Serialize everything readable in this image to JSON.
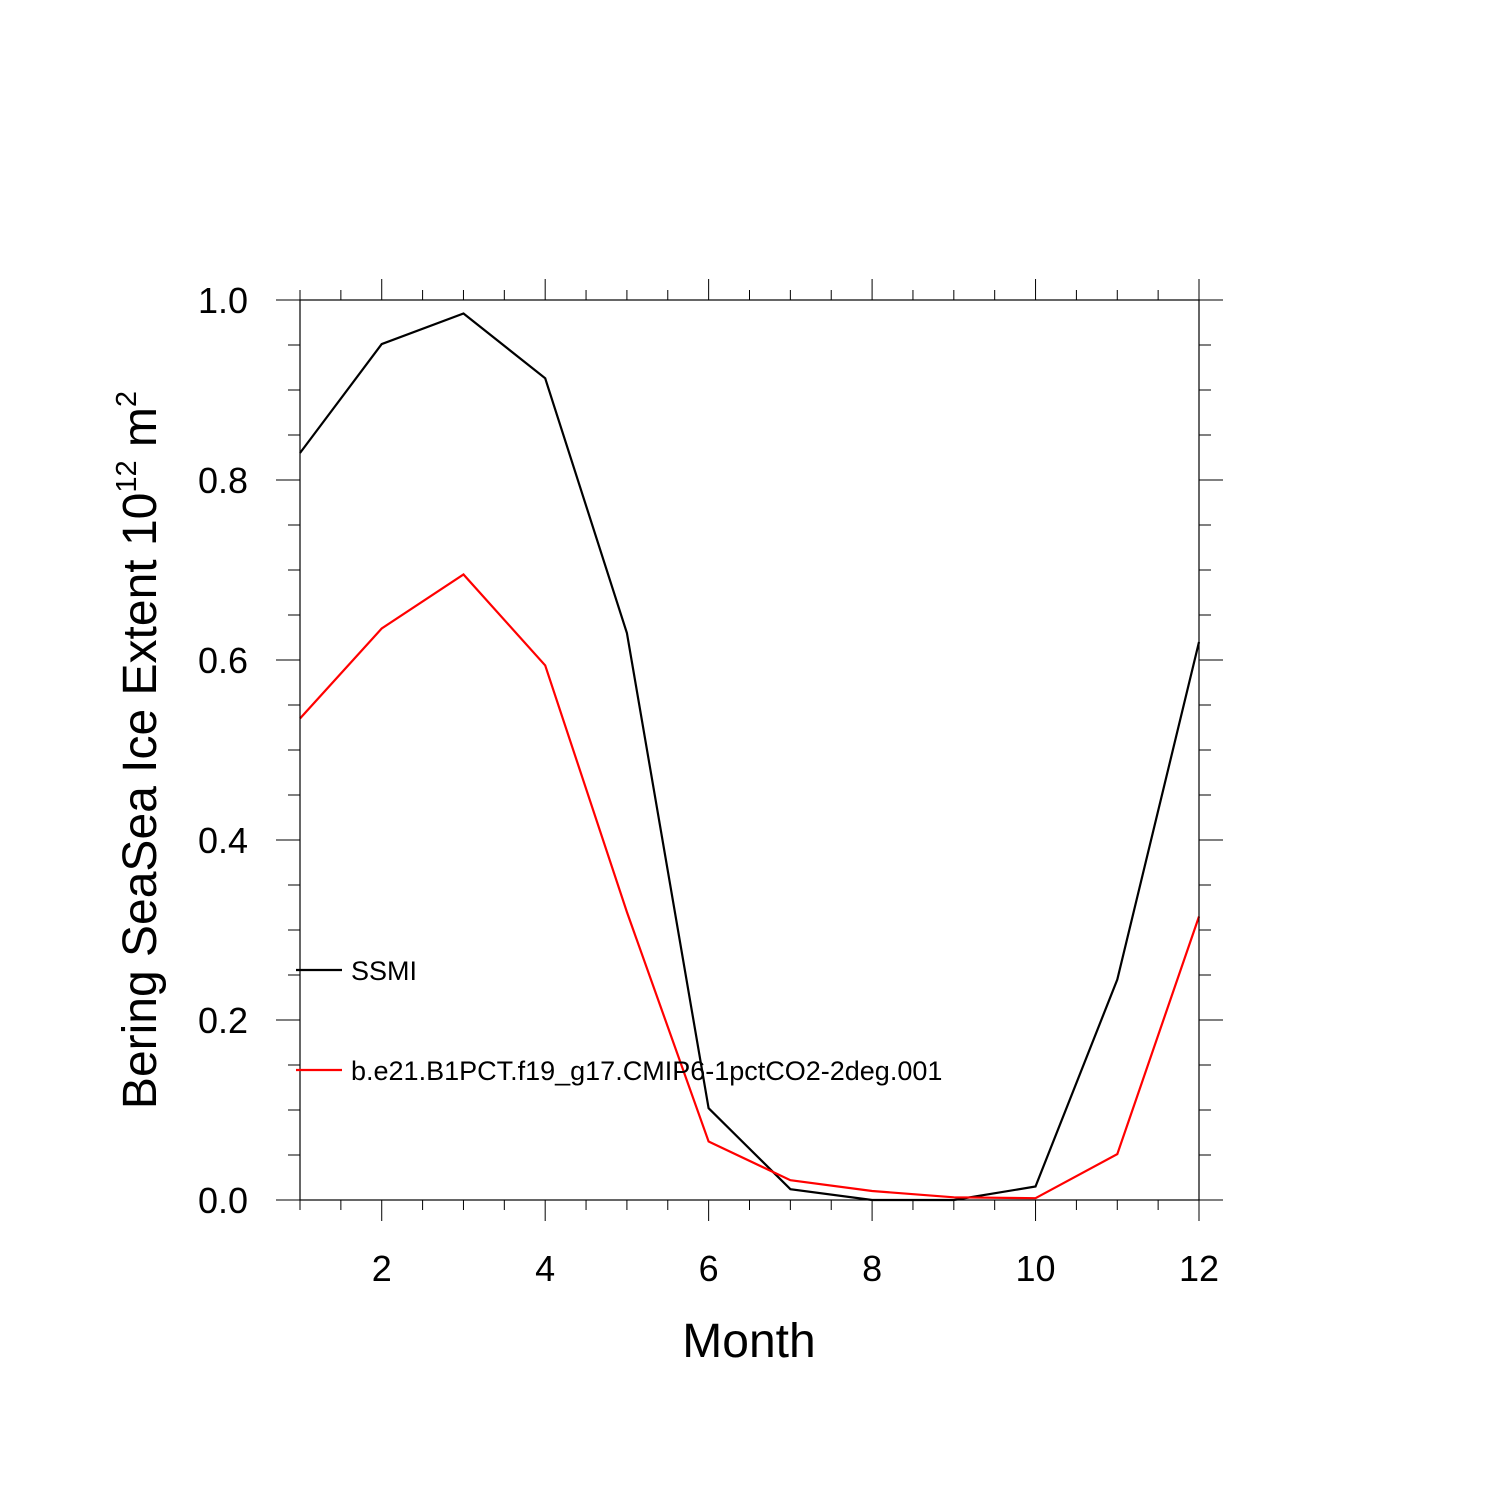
{
  "chart_data": {
    "type": "line",
    "xlabel": "Month",
    "ylabel": {
      "main": "Bering SeaSea Ice Extent 10",
      "sup": "12",
      "unit": " m",
      "unit_sup": "2"
    },
    "xlim": [
      1,
      12
    ],
    "ylim": [
      0,
      1.0
    ],
    "x_ticks": [
      2,
      4,
      6,
      8,
      10,
      12
    ],
    "x_tick_labels": [
      "2",
      "4",
      "6",
      "8",
      "10",
      "12"
    ],
    "y_ticks": [
      0,
      0.2,
      0.4,
      0.6,
      0.8,
      1.0
    ],
    "y_tick_labels": [
      "0.0",
      "0.2",
      "0.4",
      "0.6",
      "0.8",
      "1.0"
    ],
    "grid": false,
    "legend_placement": "left, inside plot",
    "x": [
      1,
      2,
      3,
      4,
      5,
      6,
      7,
      8,
      9,
      10,
      11,
      12
    ],
    "series": [
      {
        "name": "SSMI",
        "color": "#000000",
        "values": [
          0.83,
          0.951,
          0.985,
          0.913,
          0.63,
          0.102,
          0.012,
          0.0,
          0.0,
          0.015,
          0.245,
          0.62
        ]
      },
      {
        "name": "b.e21.B1PCT.f19_g17.CMIP6-1pctCO2-2deg.001",
        "color": "#ff0000",
        "values": [
          0.535,
          0.635,
          0.695,
          0.594,
          0.32,
          0.065,
          0.022,
          0.01,
          0.003,
          0.002,
          0.051,
          0.315
        ]
      }
    ]
  }
}
